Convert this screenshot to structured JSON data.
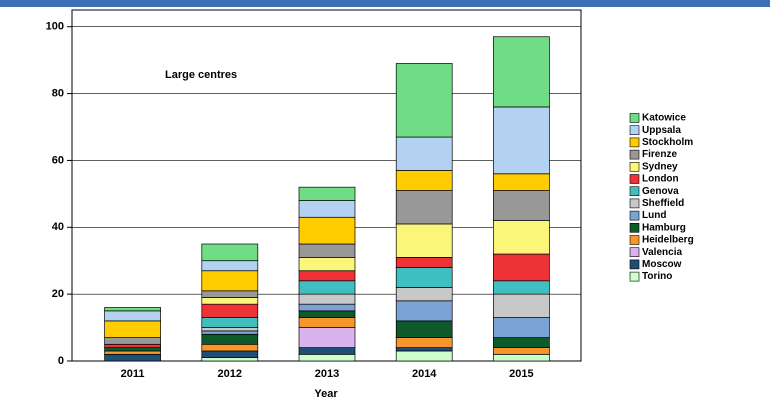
{
  "chart_data": {
    "type": "stacked_bar",
    "annotation": "Large centres",
    "x_label": "Year",
    "categories": [
      "2011",
      "2012",
      "2013",
      "2014",
      "2015"
    ],
    "ylim": [
      0,
      105
    ],
    "yticks": [
      0,
      20,
      40,
      60,
      80,
      100
    ],
    "grid": true,
    "legend": "right",
    "series": [
      {
        "name": "Torino",
        "color": "#ccffcc",
        "values": [
          0,
          1,
          2,
          3,
          2
        ]
      },
      {
        "name": "Moscow",
        "color": "#1f4e79",
        "values": [
          2,
          2,
          2,
          1,
          0
        ]
      },
      {
        "name": "Valencia",
        "color": "#d9b3ec",
        "values": [
          0,
          0,
          6,
          0,
          0
        ]
      },
      {
        "name": "Heidelberg",
        "color": "#f7962b",
        "values": [
          1,
          2,
          3,
          3,
          2
        ]
      },
      {
        "name": "Hamburg",
        "color": "#0e5a2b",
        "values": [
          1,
          3,
          2,
          5,
          3
        ]
      },
      {
        "name": "Lund",
        "color": "#7ba3d6",
        "values": [
          0,
          1,
          2,
          6,
          6
        ]
      },
      {
        "name": "Sheffield",
        "color": "#c8c8c8",
        "values": [
          0,
          1,
          3,
          4,
          7
        ]
      },
      {
        "name": "Genova",
        "color": "#3fbfbf",
        "values": [
          0,
          3,
          4,
          6,
          4
        ]
      },
      {
        "name": "London",
        "color": "#ee3338",
        "values": [
          1,
          4,
          3,
          3,
          8
        ]
      },
      {
        "name": "Sydney",
        "color": "#fbf57a",
        "values": [
          0,
          2,
          4,
          10,
          10
        ]
      },
      {
        "name": "Firenze",
        "color": "#989898",
        "values": [
          2,
          2,
          4,
          10,
          9
        ]
      },
      {
        "name": "Stockholm",
        "color": "#ffcc00",
        "values": [
          5,
          6,
          8,
          6,
          5
        ]
      },
      {
        "name": "Uppsala",
        "color": "#b3d1f0",
        "values": [
          3,
          3,
          5,
          10,
          20
        ]
      },
      {
        "name": "Katowice",
        "color": "#6fdc86",
        "values": [
          1,
          5,
          4,
          22,
          21
        ]
      }
    ]
  }
}
